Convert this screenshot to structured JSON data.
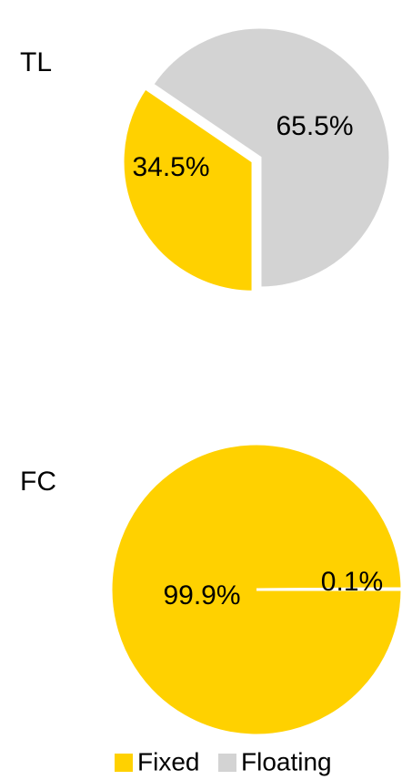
{
  "chart_data": [
    {
      "type": "pie",
      "title": "TL",
      "categories": [
        "Fixed",
        "Floating"
      ],
      "values": [
        34.5,
        65.5
      ],
      "value_labels": [
        "34.5%",
        "65.5%"
      ],
      "colors": [
        "#ffd100",
        "#d3d3d3"
      ],
      "start_angle": 180,
      "exploded": [
        true,
        false
      ]
    },
    {
      "type": "pie",
      "title": "FC",
      "categories": [
        "Fixed",
        "Floating"
      ],
      "values": [
        99.9,
        0.1
      ],
      "value_labels": [
        "99.9%",
        "0.1%"
      ],
      "colors": [
        "#ffd100",
        "#d3d3d3"
      ],
      "start_angle": 90,
      "exploded": [
        false,
        false
      ]
    }
  ]
}
